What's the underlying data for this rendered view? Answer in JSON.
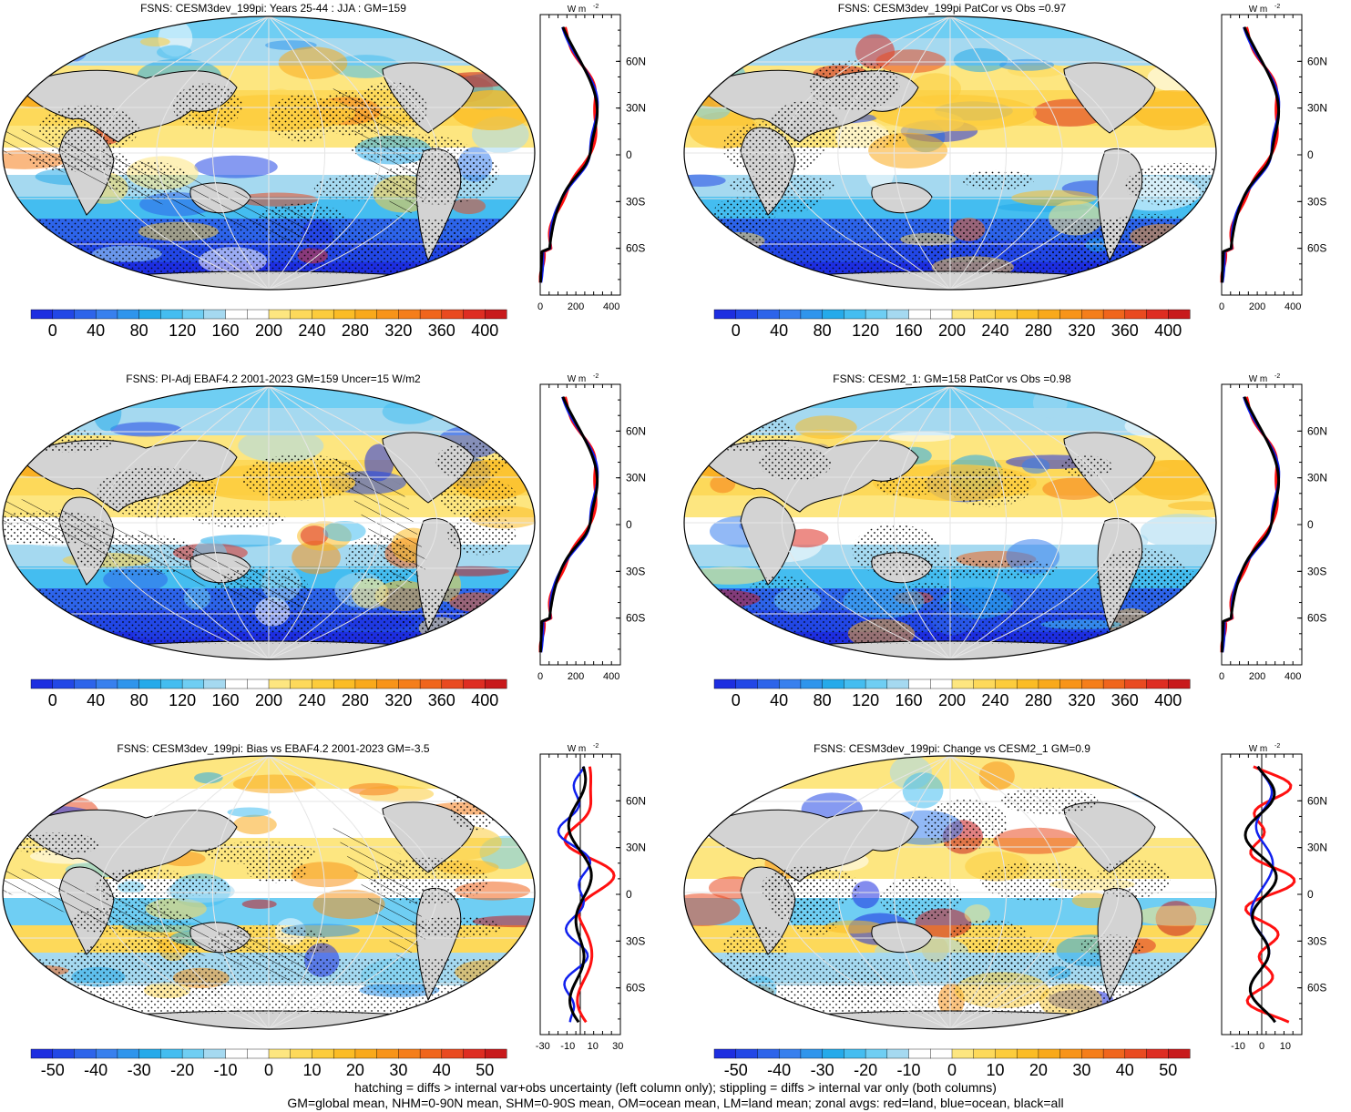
{
  "panels": [
    {
      "title": "FSNS: CESM3dev_199pi: Years 25-44 : JJA : GM=159",
      "kind": "abs",
      "hatch": true,
      "seed": 3
    },
    {
      "title": "FSNS: CESM3dev_199pi PatCor vs Obs =0.97",
      "kind": "abs",
      "hatch": false,
      "seed": 7
    },
    {
      "title": "FSNS: PI-Adj EBAF4.2 2001-2023 GM=159 Uncer=15 W/m2",
      "kind": "abs",
      "hatch": true,
      "seed": 11
    },
    {
      "title": "FSNS: CESM2_1: GM=158 PatCor vs Obs =0.98",
      "kind": "abs",
      "hatch": false,
      "seed": 19
    },
    {
      "title": "FSNS: CESM3dev_199pi: Bias vs EBAF4.2 2001-2023 GM=-3.5",
      "kind": "diff",
      "hatch": true,
      "seed": 23
    },
    {
      "title": "FSNS: CESM3dev_199pi: Change vs CESM2_1 GM=0.9",
      "kind": "diff",
      "hatch": false,
      "seed": 29
    }
  ],
  "colorbar_abs": {
    "labels": [
      "0",
      "40",
      "80",
      "120",
      "160",
      "200",
      "240",
      "280",
      "320",
      "360",
      "400"
    ],
    "colors": [
      "#1d2ee0",
      "#2247e6",
      "#2d64ea",
      "#3880ee",
      "#2f95ec",
      "#25aaea",
      "#44bdf0",
      "#6fcef3",
      "#a5d9f0",
      "#ffffff",
      "#ffffff",
      "#fde680",
      "#fdd95a",
      "#fccc3c",
      "#fbbc25",
      "#f9a91b",
      "#f89419",
      "#f57e1a",
      "#f0651c",
      "#e94a20",
      "#de2d22",
      "#c81a1c"
    ]
  },
  "colorbar_diff": {
    "labels": [
      "-50",
      "-40",
      "-30",
      "-20",
      "-10",
      "0",
      "10",
      "20",
      "30",
      "40",
      "50"
    ],
    "colors": [
      "#1d2ee0",
      "#2247e6",
      "#2d64ea",
      "#3880ee",
      "#2f95ec",
      "#25aaea",
      "#44bdf0",
      "#6fcef3",
      "#a5d9f0",
      "#ffffff",
      "#ffffff",
      "#fde680",
      "#fdd95a",
      "#fccc3c",
      "#fbbc25",
      "#f9a91b",
      "#f89419",
      "#f57e1a",
      "#f0651c",
      "#e94a20",
      "#de2d22",
      "#c81a1c"
    ]
  },
  "profile_abs": {
    "unit": "W m",
    "unit_sup": "-2",
    "xticks": [
      "0",
      "200",
      "400"
    ],
    "xlim": [
      0,
      450
    ],
    "lat_labels": [
      "60N",
      "30N",
      "0",
      "30S",
      "60S"
    ],
    "lat_values": [
      60,
      30,
      0,
      -30,
      -60
    ]
  },
  "profile_diff_left": {
    "unit": "W m",
    "unit_sup": "-2",
    "xticks": [
      "-30",
      "-10",
      "10",
      "30"
    ],
    "xlim": [
      -32,
      32
    ]
  },
  "profile_diff_right": {
    "unit": "W m",
    "unit_sup": "-2",
    "xticks": [
      "-10",
      "0",
      "10"
    ],
    "xlim": [
      -17,
      17
    ]
  },
  "line_colors": {
    "land": "#ff1010",
    "ocean": "#1020ee",
    "all": "#000000"
  },
  "footer": {
    "line1": "hatching = diffs > internal var+obs uncertainty (left column only); stippling = diffs > internal var only (both columns)",
    "line2": "GM=global mean, NHM=0-90N mean, SHM=0-90S mean, OM=ocean mean, LM=land mean; zonal avgs: red=land, blue=ocean, black=all"
  },
  "chart_data": [
    {
      "type": "heatmap",
      "title": "FSNS: CESM3dev_199pi: Years 25-44 : JJA : GM=159",
      "colorbar_ticks": [
        0,
        40,
        80,
        120,
        160,
        200,
        240,
        280,
        320,
        360,
        400
      ],
      "zonal_mean_all": {
        "lat": [
          80,
          60,
          45,
          30,
          15,
          0,
          -15,
          -30,
          -45,
          -60,
          -80
        ],
        "value": [
          80,
          200,
          260,
          275,
          240,
          235,
          215,
          165,
          95,
          30,
          0
        ]
      }
    },
    {
      "type": "heatmap",
      "title": "FSNS: CESM3dev_199pi PatCor vs Obs =0.97",
      "colorbar_ticks": [
        0,
        40,
        80,
        120,
        160,
        200,
        240,
        280,
        320,
        360,
        400
      ],
      "zonal_mean_all": {
        "lat": [
          80,
          60,
          45,
          30,
          15,
          0,
          -15,
          -30,
          -45,
          -60,
          -80
        ],
        "value": [
          80,
          200,
          255,
          270,
          240,
          230,
          210,
          160,
          95,
          30,
          0
        ]
      }
    },
    {
      "type": "heatmap",
      "title": "FSNS: PI-Adj EBAF4.2 2001-2023 GM=159 Uncer=15 W/m2",
      "colorbar_ticks": [
        0,
        40,
        80,
        120,
        160,
        200,
        240,
        280,
        320,
        360,
        400
      ],
      "zonal_mean_all": {
        "lat": [
          80,
          60,
          45,
          30,
          15,
          0,
          -15,
          -30,
          -45,
          -60,
          -80
        ],
        "value": [
          80,
          195,
          250,
          270,
          245,
          235,
          215,
          165,
          95,
          30,
          0
        ]
      }
    },
    {
      "type": "heatmap",
      "title": "FSNS: CESM2_1: GM=158 PatCor vs Obs =0.98",
      "colorbar_ticks": [
        0,
        40,
        80,
        120,
        160,
        200,
        240,
        280,
        320,
        360,
        400
      ],
      "zonal_mean_all": {
        "lat": [
          80,
          60,
          45,
          30,
          15,
          0,
          -15,
          -30,
          -45,
          -60,
          -80
        ],
        "value": [
          80,
          200,
          255,
          272,
          245,
          232,
          212,
          162,
          95,
          30,
          0
        ]
      }
    },
    {
      "type": "heatmap",
      "title": "FSNS: CESM3dev_199pi: Bias vs EBAF4.2 2001-2023 GM=-3.5",
      "colorbar_ticks": [
        -50,
        -40,
        -30,
        -20,
        -10,
        0,
        10,
        20,
        30,
        40,
        50
      ],
      "zonal_mean_all": {
        "lat": [
          80,
          60,
          45,
          30,
          15,
          0,
          -15,
          -30,
          -45,
          -60,
          -80
        ],
        "value": [
          5,
          10,
          3,
          -5,
          0,
          -8,
          -6,
          -4,
          2,
          0,
          0
        ]
      }
    },
    {
      "type": "heatmap",
      "title": "FSNS: CESM3dev_199pi: Change vs CESM2_1 GM=0.9",
      "colorbar_ticks": [
        -50,
        -40,
        -30,
        -20,
        -10,
        0,
        10,
        20,
        30,
        40,
        50
      ],
      "zonal_mean_all": {
        "lat": [
          80,
          60,
          45,
          30,
          15,
          0,
          -15,
          -30,
          -45,
          -60,
          -80
        ],
        "value": [
          10,
          12,
          5,
          -8,
          4,
          -5,
          3,
          -2,
          0,
          0,
          0
        ]
      }
    }
  ]
}
